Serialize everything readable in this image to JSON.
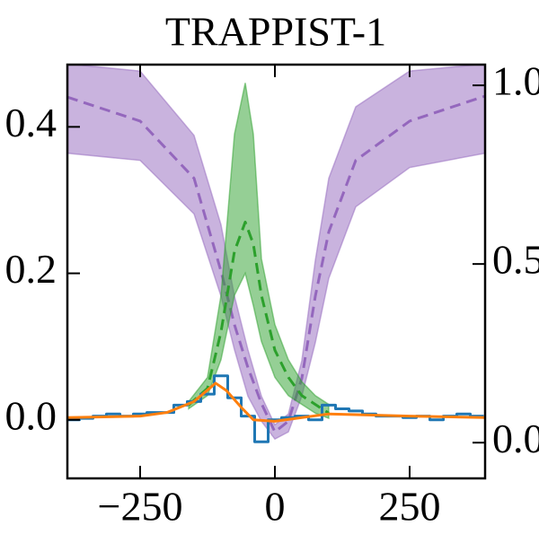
{
  "chart_data": {
    "type": "line",
    "title": "TRAPPIST-1",
    "xlim": [
      -385,
      390
    ],
    "xticks": [
      {
        "value": -250,
        "label": "−250"
      },
      0,
      250
    ],
    "ylim": [
      -0.08,
      0.485
    ],
    "yticks": [
      {
        "value": 0,
        "label": "0.0"
      },
      0.2,
      0.4
    ],
    "y2lim": [
      -0.1,
      1.058
    ],
    "y2ticks": [
      {
        "value": 0,
        "label": "0.0"
      },
      0.5,
      {
        "value": 1,
        "label": "1.0"
      }
    ],
    "series": [
      {
        "color": "#9467bd",
        "axis": "y2",
        "dashed": true,
        "x": [
          -385,
          -250,
          -150,
          -100,
          -75,
          -50,
          -25,
          0,
          25,
          50,
          75,
          100,
          150,
          250,
          390
        ],
        "values": [
          0.967,
          0.9,
          0.74,
          0.48,
          0.33,
          0.21,
          0.11,
          0.03,
          0.06,
          0.18,
          0.41,
          0.59,
          0.79,
          0.9,
          0.97
        ],
        "upper": [
          1.06,
          1.04,
          0.86,
          0.61,
          0.41,
          0.26,
          0.13,
          0.05,
          0.08,
          0.23,
          0.51,
          0.74,
          0.94,
          1.04,
          1.06
        ],
        "lower": [
          0.81,
          0.79,
          0.64,
          0.41,
          0.26,
          0.13,
          0.06,
          0.01,
          0.03,
          0.13,
          0.28,
          0.46,
          0.66,
          0.77,
          0.81
        ]
      },
      {
        "color": "#2ca02c",
        "dashed": true,
        "x": [
          -160,
          -125,
          -100,
          -75,
          -55,
          -40,
          -25,
          0,
          25,
          50,
          75,
          100
        ],
        "values": [
          0.02,
          0.043,
          0.12,
          0.23,
          0.27,
          0.24,
          0.17,
          0.095,
          0.058,
          0.033,
          0.021,
          0.009
        ],
        "upper": [
          0.025,
          0.058,
          0.17,
          0.39,
          0.46,
          0.39,
          0.22,
          0.13,
          0.082,
          0.052,
          0.033,
          0.021
        ],
        "lower": [
          0.015,
          0.033,
          0.082,
          0.17,
          0.2,
          0.156,
          0.107,
          0.058,
          0.033,
          0.021,
          0.009,
          0.002
        ]
      },
      {
        "color": "#1f77b4",
        "step": true,
        "x": [
          -375,
          -350,
          -325,
          -300,
          -275,
          -250,
          -225,
          -200,
          -175,
          -150,
          -125,
          -100,
          -75,
          -50,
          -25,
          0,
          25,
          50,
          75,
          100,
          125,
          150,
          175,
          200,
          225,
          250,
          275,
          300,
          325,
          350,
          375
        ],
        "values": [
          0.0,
          0.002,
          0.005,
          0.008,
          0.005,
          0.008,
          0.01,
          0.01,
          0.02,
          0.025,
          0.035,
          0.06,
          0.03,
          0.005,
          -0.03,
          0.0,
          0.003,
          0.005,
          0.0,
          0.02,
          0.015,
          0.012,
          0.008,
          0.005,
          0.005,
          0.003,
          0.005,
          0.0,
          0.005,
          0.008,
          0.005
        ]
      },
      {
        "color": "#ff7f0e",
        "x": [
          -385,
          -250,
          -200,
          -150,
          -110,
          -90,
          -60,
          -40,
          0,
          50,
          100,
          150,
          250,
          390
        ],
        "values": [
          0.003,
          0.005,
          0.01,
          0.025,
          0.05,
          0.04,
          0.015,
          0.0,
          -0.002,
          0.003,
          0.008,
          0.007,
          0.005,
          0.003
        ]
      }
    ]
  }
}
